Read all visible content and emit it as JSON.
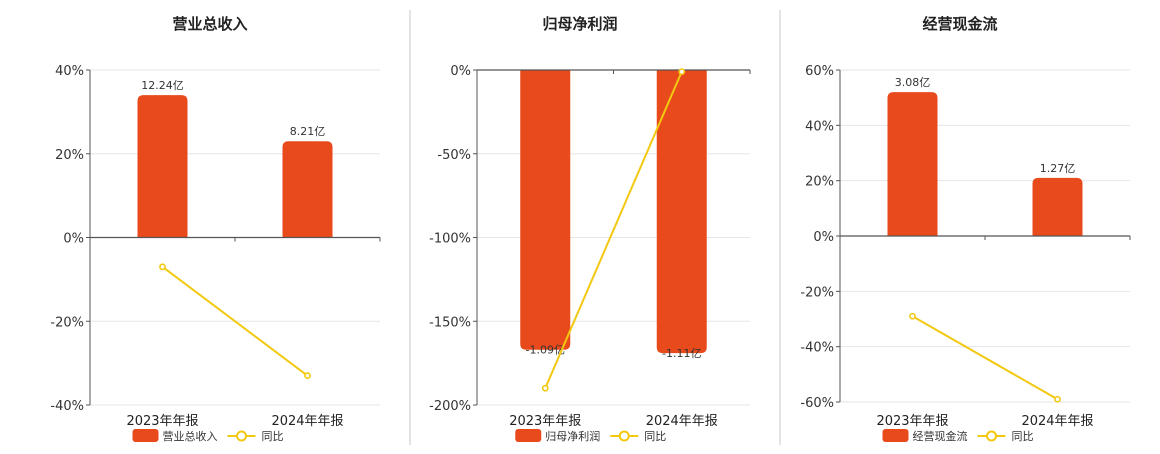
{
  "colors": {
    "bar": "#E84A1C",
    "line": "#F2C811",
    "grid": "#e6e6e6",
    "axis": "#555555",
    "divider": "#c8c8c8"
  },
  "chart_data": [
    {
      "type": "bar",
      "title": "营业总收入",
      "categories": [
        "2023年年报",
        "2024年年报"
      ],
      "series": [
        {
          "name": "营业总收入",
          "type": "bar",
          "values": [
            34,
            23
          ],
          "labels": [
            "12.24亿",
            "8.21亿"
          ]
        },
        {
          "name": "同比",
          "type": "line",
          "values": [
            -7,
            -33
          ]
        }
      ],
      "ylim": [
        -40,
        40
      ],
      "yticks": [
        40,
        20,
        0,
        -20,
        -40
      ],
      "ytick_labels": [
        "40%",
        "20%",
        "0%",
        "-20%",
        "-40%"
      ],
      "grid": true,
      "legend_position": "bottom"
    },
    {
      "type": "bar",
      "title": "归母净利润",
      "categories": [
        "2023年年报",
        "2024年年报"
      ],
      "series": [
        {
          "name": "归母净利润",
          "type": "bar",
          "values": [
            -167,
            -169
          ],
          "labels": [
            "-1.09亿",
            "-1.11亿"
          ]
        },
        {
          "name": "同比",
          "type": "line",
          "values": [
            -190,
            -1
          ]
        }
      ],
      "ylim": [
        -200,
        0
      ],
      "yticks": [
        0,
        -50,
        -100,
        -150,
        -200
      ],
      "ytick_labels": [
        "0%",
        "-50%",
        "-100%",
        "-150%",
        "-200%"
      ],
      "grid": true,
      "legend_position": "bottom"
    },
    {
      "type": "bar",
      "title": "经营现金流",
      "categories": [
        "2023年年报",
        "2024年年报"
      ],
      "series": [
        {
          "name": "经营现金流",
          "type": "bar",
          "values": [
            52,
            21
          ],
          "labels": [
            "3.08亿",
            "1.27亿"
          ]
        },
        {
          "name": "同比",
          "type": "line",
          "values": [
            -29,
            -59
          ]
        }
      ],
      "ylim": [
        -60,
        60
      ],
      "yticks": [
        60,
        40,
        20,
        0,
        -20,
        -40,
        -60
      ],
      "ytick_labels": [
        "60%",
        "40%",
        "20%",
        "0%",
        "-20%",
        "-40%",
        "-60%"
      ],
      "grid": true,
      "legend_position": "bottom"
    }
  ]
}
